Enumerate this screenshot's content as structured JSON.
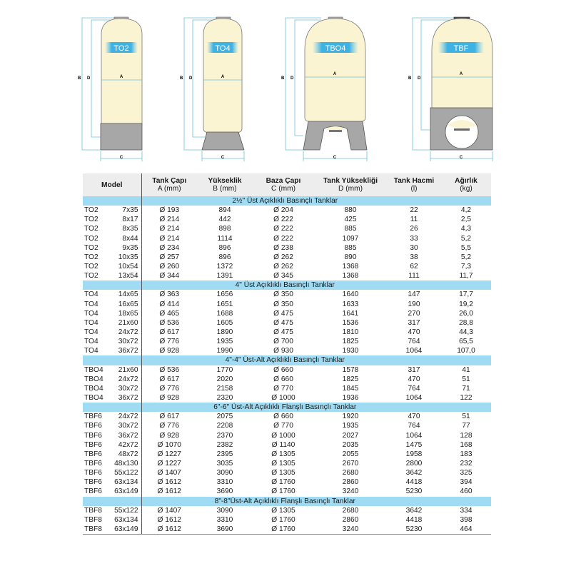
{
  "diagrams": [
    {
      "label": "TO2",
      "dims": {
        "a": "A",
        "b": "B",
        "c": "C",
        "d": "D"
      }
    },
    {
      "label": "TO4",
      "dims": {
        "a": "A",
        "b": "B",
        "c": "C",
        "d": "D"
      }
    },
    {
      "label": "TBO4",
      "dims": {
        "a": "A",
        "b": "B",
        "c": "C",
        "d": "D"
      }
    },
    {
      "label": "TBF",
      "dims": {
        "a": "A",
        "b": "B",
        "c": "C",
        "d": "D"
      }
    }
  ],
  "colors": {
    "tank_body": "#fbf4d3",
    "base": "#a7a7a7",
    "dimension_line": "#6cc0d8",
    "section_band": "#9fdcf3"
  },
  "table": {
    "headers": {
      "model": "Model",
      "diameter": [
        "Tank Çapı",
        "A (mm)"
      ],
      "height": [
        "Yükseklik",
        "B (mm)"
      ],
      "base": [
        "Baza Çapı",
        "C (mm)"
      ],
      "tank_height": [
        "Tank Yüksekliği",
        "D (mm)"
      ],
      "volume": [
        "Tank Hacmi",
        "(l)"
      ],
      "weight": [
        "Ağırlık",
        "(kg)"
      ]
    },
    "sections": [
      {
        "title": "2½\" Üst Açıklıklı Basınçlı Tanklar",
        "rows": [
          [
            "TO2",
            "7x35",
            "Ø 193",
            "894",
            "Ø 204",
            "880",
            "22",
            "4,2"
          ],
          [
            "TO2",
            "8x17",
            "Ø 214",
            "442",
            "Ø 222",
            "425",
            "11",
            "2,5"
          ],
          [
            "TO2",
            "8x35",
            "Ø 214",
            "898",
            "Ø 222",
            "885",
            "26",
            "4,3"
          ],
          [
            "TO2",
            "8x44",
            "Ø 214",
            "1114",
            "Ø 222",
            "1097",
            "33",
            "5,2"
          ],
          [
            "TO2",
            "9x35",
            "Ø 234",
            "896",
            "Ø 238",
            "885",
            "30",
            "5,5"
          ],
          [
            "TO2",
            "10x35",
            "Ø 257",
            "896",
            "Ø 262",
            "890",
            "38",
            "5,2"
          ],
          [
            "TO2",
            "10x54",
            "Ø 260",
            "1372",
            "Ø 262",
            "1368",
            "62",
            "7,3"
          ],
          [
            "TO2",
            "13x54",
            "Ø 344",
            "1391",
            "Ø 345",
            "1368",
            "111",
            "11,7"
          ]
        ]
      },
      {
        "title": "4\" Üst Açıklıklı Basınçlı Tanklar",
        "rows": [
          [
            "TO4",
            "14x65",
            "Ø 363",
            "1656",
            "Ø 350",
            "1640",
            "147",
            "17,7"
          ],
          [
            "TO4",
            "16x65",
            "Ø 414",
            "1651",
            "Ø 350",
            "1633",
            "190",
            "19,2"
          ],
          [
            "TO4",
            "18x65",
            "Ø 465",
            "1688",
            "Ø 475",
            "1641",
            "270",
            "26,0"
          ],
          [
            "TO4",
            "21x60",
            "Ø 536",
            "1605",
            "Ø 475",
            "1536",
            "317",
            "28,8"
          ],
          [
            "TO4",
            "24x72",
            "Ø 617",
            "1890",
            "Ø 475",
            "1810",
            "470",
            "44,3"
          ],
          [
            "TO4",
            "30x72",
            "Ø 776",
            "1935",
            "Ø 700",
            "1825",
            "764",
            "65,5"
          ],
          [
            "TO4",
            "36x72",
            "Ø 928",
            "1990",
            "Ø 930",
            "1930",
            "1064",
            "107,0"
          ]
        ]
      },
      {
        "title": "4\"-4\" Üst-Alt Açıklıklı Basınçlı Tanklar",
        "rows": [
          [
            "TBO4",
            "21x60",
            "Ø 536",
            "1770",
            "Ø 660",
            "1578",
            "317",
            "41"
          ],
          [
            "TBO4",
            "24x72",
            "Ø 617",
            "2020",
            "Ø 660",
            "1825",
            "470",
            "51"
          ],
          [
            "TBO4",
            "30x72",
            "Ø 776",
            "2158",
            "Ø 770",
            "1845",
            "764",
            "71"
          ],
          [
            "TBO4",
            "36x72",
            "Ø 928",
            "2320",
            "Ø 1000",
            "1936",
            "1064",
            "122"
          ]
        ]
      },
      {
        "title": "6\"-6\" Üst-Alt Açıklıklı Flanşlı Basınçlı Tanklar",
        "rows": [
          [
            "TBF6",
            "24x72",
            "Ø 617",
            "2075",
            "Ø 660",
            "1920",
            "470",
            "51"
          ],
          [
            "TBF6",
            "30x72",
            "Ø 776",
            "2208",
            "Ø 770",
            "1935",
            "764",
            "77"
          ],
          [
            "TBF6",
            "36x72",
            "Ø 928",
            "2370",
            "Ø 1000",
            "2027",
            "1064",
            "128"
          ],
          [
            "TBF6",
            "42x72",
            "Ø 1070",
            "2382",
            "Ø 1140",
            "2035",
            "1475",
            "168"
          ],
          [
            "TBF6",
            "48x72",
            "Ø 1227",
            "2395",
            "Ø 1305",
            "2055",
            "1958",
            "183"
          ],
          [
            "TBF6",
            "48x130",
            "Ø 1227",
            "3035",
            "Ø 1305",
            "2670",
            "2800",
            "232"
          ],
          [
            "TBF6",
            "55x122",
            "Ø 1407",
            "3090",
            "Ø 1305",
            "2680",
            "3642",
            "325"
          ],
          [
            "TBF6",
            "63x134",
            "Ø 1612",
            "3310",
            "Ø 1760",
            "2860",
            "4418",
            "394"
          ],
          [
            "TBF6",
            "63x149",
            "Ø 1612",
            "3690",
            "Ø 1760",
            "3240",
            "5230",
            "460"
          ]
        ]
      },
      {
        "title": "8\"-8\"Üst-Alt Açıklıklı Flanşlı Basınçlı Tanklar",
        "rows": [
          [
            "TBF8",
            "55x122",
            "Ø 1407",
            "3090",
            "Ø 1305",
            "2680",
            "3642",
            "334"
          ],
          [
            "TBF8",
            "63x134",
            "Ø 1612",
            "3310",
            "Ø 1760",
            "2860",
            "4418",
            "398"
          ],
          [
            "TBF8",
            "63x149",
            "Ø 1612",
            "3690",
            "Ø 1760",
            "3240",
            "5230",
            "464"
          ]
        ]
      }
    ]
  }
}
